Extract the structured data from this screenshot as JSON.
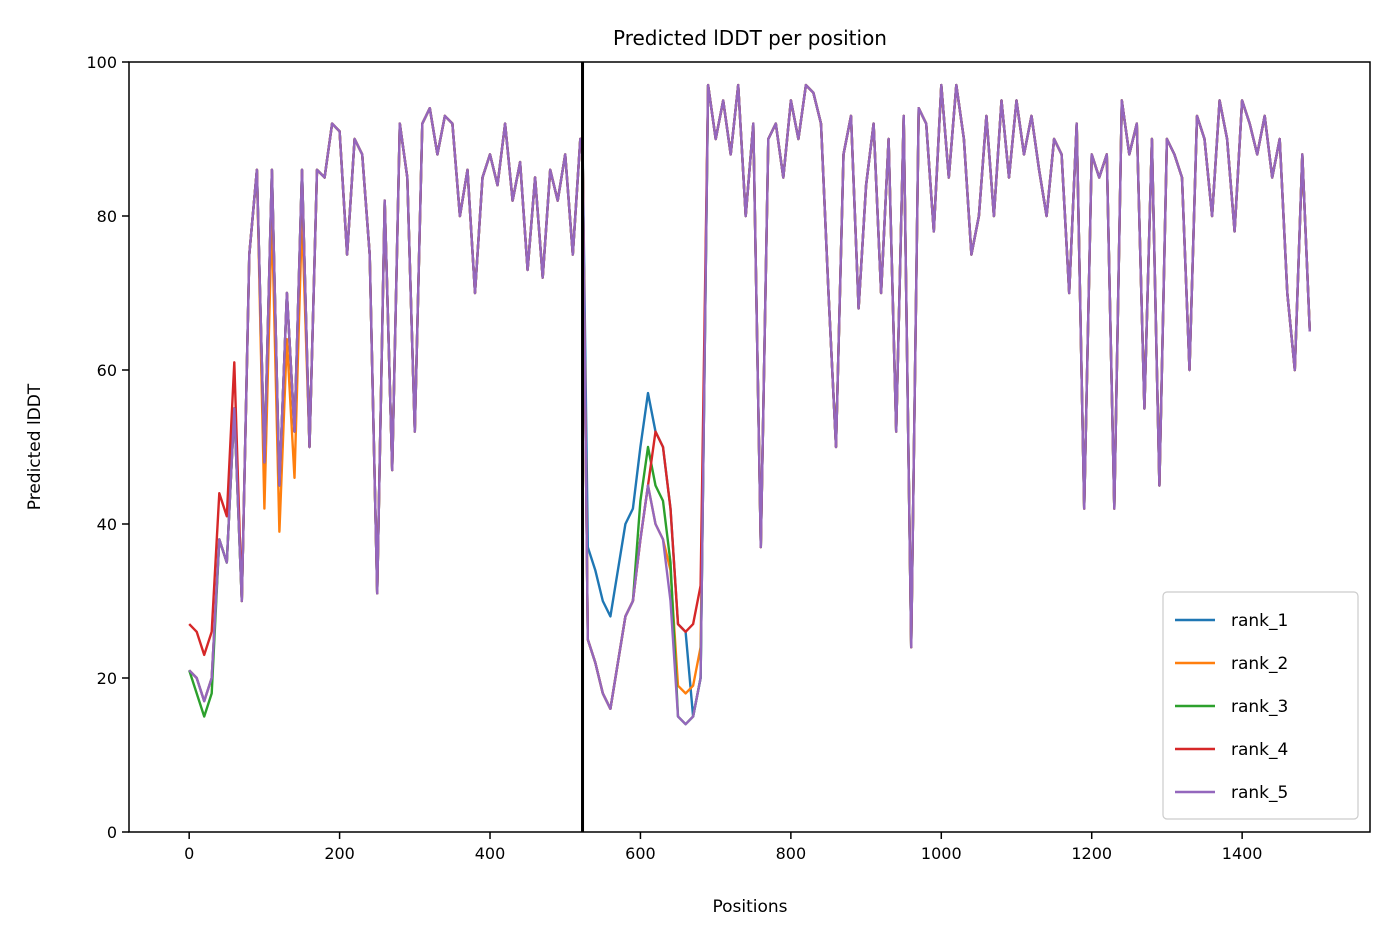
{
  "chart_data": {
    "type": "line",
    "title": "Predicted lDDT per position",
    "xlabel": "Positions",
    "ylabel": "Predicted lDDT",
    "xlim": [
      -80,
      1570
    ],
    "ylim": [
      0,
      100
    ],
    "xticks": [
      0,
      200,
      400,
      600,
      800,
      1000,
      1200,
      1400
    ],
    "yticks": [
      0,
      20,
      40,
      60,
      80,
      100
    ],
    "grid": false,
    "legend_position": "lower-right",
    "vline_x": 523,
    "colors": {
      "rank_1": "#1f77b4",
      "rank_2": "#ff7f0e",
      "rank_3": "#2ca02c",
      "rank_4": "#d62728",
      "rank_5": "#9467bd",
      "vline": "#000000"
    },
    "base_profile": {
      "x": [
        0,
        10,
        20,
        30,
        40,
        50,
        60,
        70,
        80,
        90,
        100,
        110,
        120,
        130,
        140,
        150,
        160,
        170,
        180,
        190,
        200,
        210,
        220,
        230,
        240,
        250,
        260,
        270,
        280,
        290,
        300,
        310,
        320,
        330,
        340,
        350,
        360,
        370,
        380,
        390,
        400,
        410,
        420,
        430,
        440,
        450,
        460,
        470,
        480,
        490,
        500,
        510,
        520,
        523,
        530,
        540,
        550,
        560,
        570,
        580,
        590,
        600,
        610,
        620,
        630,
        640,
        650,
        660,
        670,
        680,
        690,
        700,
        710,
        720,
        730,
        740,
        750,
        760,
        770,
        780,
        790,
        800,
        810,
        820,
        830,
        840,
        850,
        860,
        870,
        880,
        890,
        900,
        910,
        920,
        930,
        940,
        950,
        960,
        970,
        980,
        990,
        1000,
        1010,
        1020,
        1030,
        1040,
        1050,
        1060,
        1070,
        1080,
        1090,
        1100,
        1110,
        1120,
        1130,
        1140,
        1150,
        1160,
        1170,
        1180,
        1190,
        1200,
        1210,
        1220,
        1230,
        1240,
        1250,
        1260,
        1270,
        1280,
        1290,
        1300,
        1310,
        1320,
        1330,
        1340,
        1350,
        1360,
        1370,
        1380,
        1390,
        1400,
        1410,
        1420,
        1430,
        1440,
        1450,
        1460,
        1470,
        1480,
        1490
      ],
      "values": [
        21,
        20,
        17,
        20,
        38,
        35,
        55,
        30,
        75,
        86,
        48,
        86,
        45,
        70,
        52,
        86,
        50,
        86,
        85,
        92,
        91,
        75,
        90,
        88,
        75,
        31,
        82,
        47,
        92,
        85,
        52,
        92,
        94,
        88,
        93,
        92,
        80,
        86,
        70,
        85,
        88,
        84,
        92,
        82,
        87,
        73,
        85,
        72,
        86,
        82,
        88,
        75,
        90,
        90,
        25,
        22,
        18,
        16,
        22,
        28,
        30,
        38,
        45,
        40,
        38,
        30,
        15,
        14,
        15,
        20,
        97,
        90,
        95,
        88,
        97,
        80,
        92,
        37,
        90,
        92,
        85,
        95,
        90,
        97,
        96,
        92,
        70,
        50,
        88,
        93,
        68,
        84,
        92,
        70,
        90,
        52,
        93,
        24,
        94,
        92,
        78,
        97,
        85,
        97,
        90,
        75,
        80,
        93,
        80,
        95,
        85,
        95,
        88,
        93,
        86,
        80,
        90,
        88,
        70,
        92,
        42,
        88,
        85,
        88,
        42,
        95,
        88,
        92,
        55,
        90,
        45,
        90,
        88,
        85,
        60,
        93,
        90,
        80,
        95,
        90,
        78,
        95,
        92,
        88,
        93,
        85,
        90,
        70,
        60,
        88,
        65
      ]
    },
    "series": [
      {
        "name": "rank_1",
        "offsets": [
          {
            "x": [
              530,
              660
            ],
            "dy": 12
          }
        ]
      },
      {
        "name": "rank_2",
        "offsets": [
          {
            "x": [
              100,
              150
            ],
            "dy": -6
          },
          {
            "x": [
              640,
              680
            ],
            "dy": 4
          }
        ]
      },
      {
        "name": "rank_3",
        "offsets": [
          {
            "x": [
              600,
              640
            ],
            "dy": 5
          },
          {
            "x": [
              10,
              30
            ],
            "dy": -2
          }
        ]
      },
      {
        "name": "rank_4",
        "offsets": [
          {
            "x": [
              0,
              60
            ],
            "dy": 6
          },
          {
            "x": [
              620,
              680
            ],
            "dy": 12
          }
        ]
      },
      {
        "name": "rank_5",
        "offsets": []
      }
    ],
    "legend": [
      "rank_1",
      "rank_2",
      "rank_3",
      "rank_4",
      "rank_5"
    ]
  }
}
